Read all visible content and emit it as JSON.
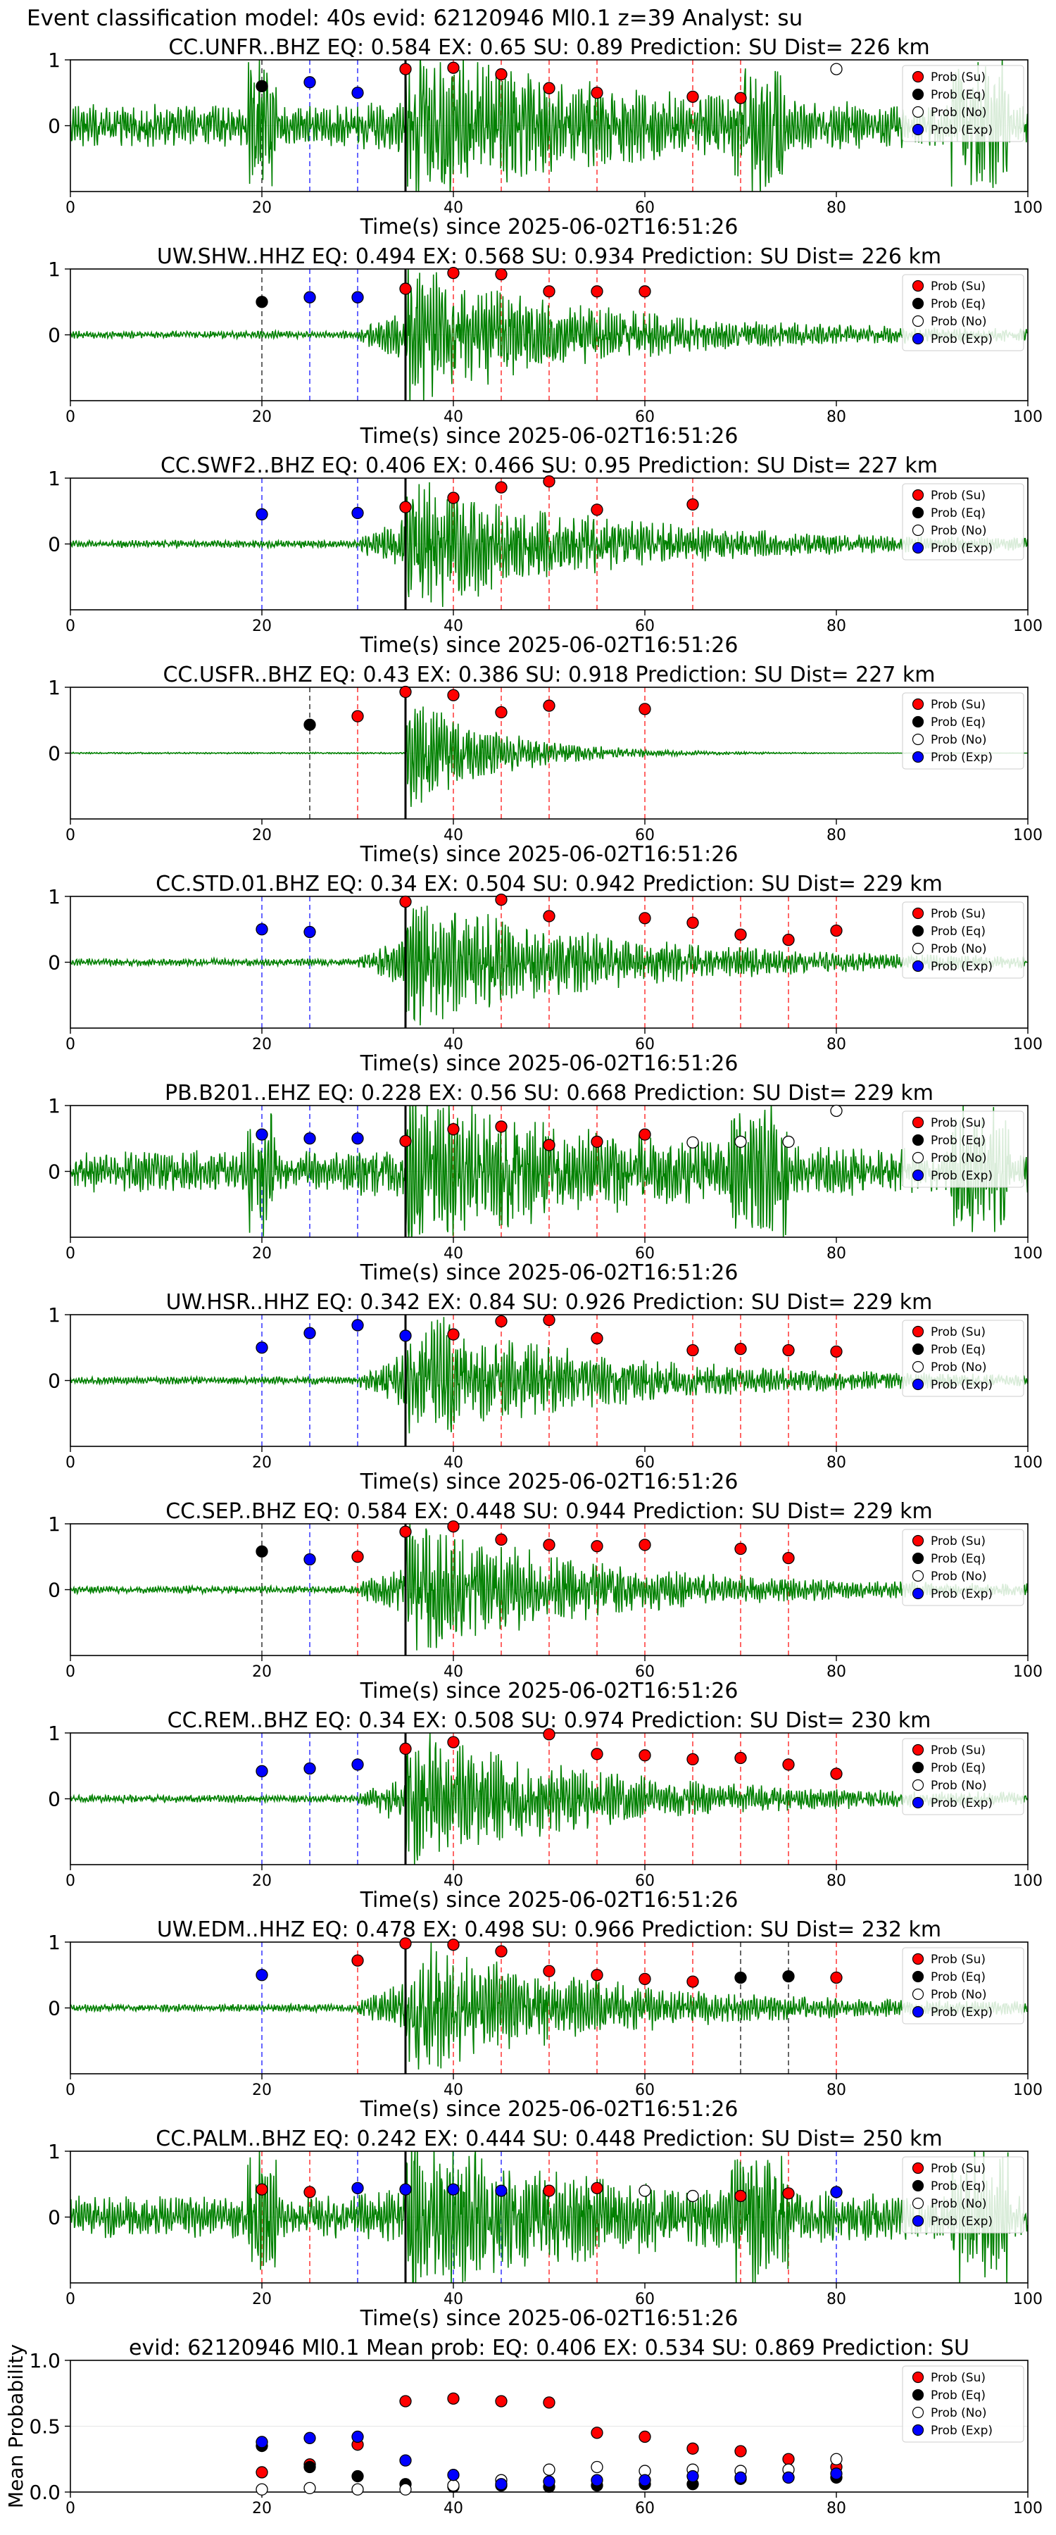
{
  "page_title": "Event classification model: 40s evid: 62120946 Ml0.1 z=39 Analyst: su",
  "legend_labels": [
    "Prob (Su)",
    "Prob (Eq)",
    "Prob (No)",
    "Prob (Exp)"
  ],
  "colors": {
    "su": "#ff0000",
    "eq": "#000000",
    "no": "#ffffff",
    "exp": "#0000ff",
    "trace": "#008000",
    "pick": "#000000"
  },
  "chart_data": [
    {
      "type": "line",
      "title": "CC.UNFR..BHZ   EQ: 0.584  EX: 0.65  SU: 0.89   Prediction: SU    Dist= 226 km",
      "xlabel": "Time(s) since 2025-06-02T16:51:26",
      "xlim": [
        0,
        100
      ],
      "ylim": [
        -1,
        1
      ],
      "xticks": [
        0,
        20,
        40,
        60,
        80,
        100
      ],
      "yticks": [
        0,
        1
      ],
      "pick_time": 35,
      "trace_style": "noisy",
      "series": [
        {
          "name": "Prob (Su)",
          "x": [
            35,
            40,
            45,
            50,
            55,
            65,
            70
          ],
          "y": [
            0.86,
            0.88,
            0.78,
            0.57,
            0.5,
            0.44,
            0.42
          ]
        },
        {
          "name": "Prob (Eq)",
          "x": [
            20
          ],
          "y": [
            0.6
          ]
        },
        {
          "name": "Prob (No)",
          "x": [
            80
          ],
          "y": [
            0.86
          ]
        },
        {
          "name": "Prob (Exp)",
          "x": [
            25,
            30
          ],
          "y": [
            0.66,
            0.5
          ]
        }
      ]
    },
    {
      "type": "line",
      "title": "UW.SHW..HHZ   EQ: 0.494  EX: 0.568  SU: 0.934   Prediction: SU    Dist= 226 km",
      "xlabel": "Time(s) since 2025-06-02T16:51:26",
      "xlim": [
        0,
        100
      ],
      "ylim": [
        -1,
        1
      ],
      "xticks": [
        0,
        20,
        40,
        60,
        80,
        100
      ],
      "yticks": [
        0,
        1
      ],
      "pick_time": 35,
      "trace_style": "quiet",
      "series": [
        {
          "name": "Prob (Su)",
          "x": [
            35,
            40,
            45,
            50,
            55,
            60
          ],
          "y": [
            0.7,
            0.94,
            0.92,
            0.66,
            0.66,
            0.66
          ]
        },
        {
          "name": "Prob (Eq)",
          "x": [
            20
          ],
          "y": [
            0.5
          ]
        },
        {
          "name": "Prob (No)",
          "x": [],
          "y": []
        },
        {
          "name": "Prob (Exp)",
          "x": [
            25,
            30
          ],
          "y": [
            0.57,
            0.57
          ]
        }
      ]
    },
    {
      "type": "line",
      "title": "CC.SWF2..BHZ   EQ: 0.406  EX: 0.466  SU: 0.95   Prediction: SU    Dist= 227 km",
      "xlabel": "Time(s) since 2025-06-02T16:51:26",
      "xlim": [
        0,
        100
      ],
      "ylim": [
        -1,
        1
      ],
      "xticks": [
        0,
        20,
        40,
        60,
        80,
        100
      ],
      "yticks": [
        0,
        1
      ],
      "pick_time": 35,
      "trace_style": "quiet",
      "series": [
        {
          "name": "Prob (Su)",
          "x": [
            35,
            40,
            45,
            50,
            55,
            65
          ],
          "y": [
            0.56,
            0.7,
            0.86,
            0.95,
            0.52,
            0.6
          ]
        },
        {
          "name": "Prob (Eq)",
          "x": [],
          "y": []
        },
        {
          "name": "Prob (No)",
          "x": [],
          "y": []
        },
        {
          "name": "Prob (Exp)",
          "x": [
            20,
            30
          ],
          "y": [
            0.45,
            0.47
          ]
        }
      ]
    },
    {
      "type": "line",
      "title": "CC.USFR..BHZ   EQ: 0.43  EX: 0.386  SU: 0.918   Prediction: SU    Dist= 227 km",
      "xlabel": "Time(s) since 2025-06-02T16:51:26",
      "xlim": [
        0,
        100
      ],
      "ylim": [
        -1,
        1
      ],
      "xticks": [
        0,
        20,
        40,
        60,
        80,
        100
      ],
      "yticks": [
        0,
        1
      ],
      "pick_time": 35,
      "trace_style": "flat",
      "series": [
        {
          "name": "Prob (Su)",
          "x": [
            30,
            35,
            40,
            45,
            50,
            60
          ],
          "y": [
            0.56,
            0.93,
            0.88,
            0.62,
            0.72,
            0.67
          ]
        },
        {
          "name": "Prob (Eq)",
          "x": [
            25
          ],
          "y": [
            0.43
          ]
        },
        {
          "name": "Prob (No)",
          "x": [],
          "y": []
        },
        {
          "name": "Prob (Exp)",
          "x": [],
          "y": []
        }
      ]
    },
    {
      "type": "line",
      "title": "CC.STD.01.BHZ   EQ: 0.34  EX: 0.504  SU: 0.942   Prediction: SU    Dist= 229 km",
      "xlabel": "Time(s) since 2025-06-02T16:51:26",
      "xlim": [
        0,
        100
      ],
      "ylim": [
        -1,
        1
      ],
      "xticks": [
        0,
        20,
        40,
        60,
        80,
        100
      ],
      "yticks": [
        0,
        1
      ],
      "pick_time": 35,
      "trace_style": "quiet",
      "series": [
        {
          "name": "Prob (Su)",
          "x": [
            35,
            45,
            50,
            60,
            65,
            70,
            75,
            80
          ],
          "y": [
            0.92,
            0.95,
            0.7,
            0.67,
            0.6,
            0.42,
            0.34,
            0.48
          ]
        },
        {
          "name": "Prob (Eq)",
          "x": [],
          "y": []
        },
        {
          "name": "Prob (No)",
          "x": [],
          "y": []
        },
        {
          "name": "Prob (Exp)",
          "x": [
            20,
            25
          ],
          "y": [
            0.5,
            0.46
          ]
        }
      ]
    },
    {
      "type": "line",
      "title": "PB.B201..EHZ   EQ: 0.228  EX: 0.56  SU: 0.668   Prediction: SU    Dist= 229 km",
      "xlabel": "Time(s) since 2025-06-02T16:51:26",
      "xlim": [
        0,
        100
      ],
      "ylim": [
        -1,
        1
      ],
      "xticks": [
        0,
        20,
        40,
        60,
        80,
        100
      ],
      "yticks": [
        0,
        1
      ],
      "pick_time": 35,
      "trace_style": "noisy",
      "series": [
        {
          "name": "Prob (Su)",
          "x": [
            35,
            40,
            45,
            50,
            55,
            60
          ],
          "y": [
            0.46,
            0.64,
            0.68,
            0.4,
            0.45,
            0.56
          ]
        },
        {
          "name": "Prob (Eq)",
          "x": [],
          "y": []
        },
        {
          "name": "Prob (No)",
          "x": [
            65,
            70,
            75,
            80
          ],
          "y": [
            0.44,
            0.45,
            0.45,
            0.92
          ]
        },
        {
          "name": "Prob (Exp)",
          "x": [
            20,
            25,
            30
          ],
          "y": [
            0.56,
            0.5,
            0.5
          ]
        }
      ]
    },
    {
      "type": "line",
      "title": "UW.HSR..HHZ   EQ: 0.342  EX: 0.84  SU: 0.926   Prediction: SU    Dist= 229 km",
      "xlabel": "Time(s) since 2025-06-02T16:51:26",
      "xlim": [
        0,
        100
      ],
      "ylim": [
        -1,
        1
      ],
      "xticks": [
        0,
        20,
        40,
        60,
        80,
        100
      ],
      "yticks": [
        0,
        1
      ],
      "pick_time": 35,
      "trace_style": "quiet",
      "series": [
        {
          "name": "Prob (Su)",
          "x": [
            40,
            45,
            50,
            55,
            65,
            70,
            75,
            80
          ],
          "y": [
            0.7,
            0.9,
            0.92,
            0.64,
            0.46,
            0.48,
            0.46,
            0.44
          ]
        },
        {
          "name": "Prob (Eq)",
          "x": [],
          "y": []
        },
        {
          "name": "Prob (No)",
          "x": [],
          "y": []
        },
        {
          "name": "Prob (Exp)",
          "x": [
            20,
            25,
            30,
            35
          ],
          "y": [
            0.5,
            0.72,
            0.84,
            0.68
          ]
        }
      ]
    },
    {
      "type": "line",
      "title": "CC.SEP..BHZ   EQ: 0.584  EX: 0.448  SU: 0.944   Prediction: SU    Dist= 229 km",
      "xlabel": "Time(s) since 2025-06-02T16:51:26",
      "xlim": [
        0,
        100
      ],
      "ylim": [
        -1,
        1
      ],
      "xticks": [
        0,
        20,
        40,
        60,
        80,
        100
      ],
      "yticks": [
        0,
        1
      ],
      "pick_time": 35,
      "trace_style": "quiet",
      "series": [
        {
          "name": "Prob (Su)",
          "x": [
            30,
            35,
            40,
            45,
            50,
            55,
            60,
            70,
            75
          ],
          "y": [
            0.5,
            0.88,
            0.96,
            0.76,
            0.68,
            0.66,
            0.68,
            0.62,
            0.48
          ]
        },
        {
          "name": "Prob (Eq)",
          "x": [
            20
          ],
          "y": [
            0.58
          ]
        },
        {
          "name": "Prob (No)",
          "x": [],
          "y": []
        },
        {
          "name": "Prob (Exp)",
          "x": [
            25
          ],
          "y": [
            0.46
          ]
        }
      ]
    },
    {
      "type": "line",
      "title": "CC.REM..BHZ   EQ: 0.34  EX: 0.508  SU: 0.974   Prediction: SU    Dist= 230 km",
      "xlabel": "Time(s) since 2025-06-02T16:51:26",
      "xlim": [
        0,
        100
      ],
      "ylim": [
        -1,
        1
      ],
      "xticks": [
        0,
        20,
        40,
        60,
        80,
        100
      ],
      "yticks": [
        0,
        1
      ],
      "pick_time": 35,
      "trace_style": "quiet",
      "series": [
        {
          "name": "Prob (Su)",
          "x": [
            35,
            40,
            50,
            55,
            60,
            65,
            70,
            75,
            80
          ],
          "y": [
            0.76,
            0.86,
            0.98,
            0.68,
            0.66,
            0.6,
            0.62,
            0.52,
            0.38
          ]
        },
        {
          "name": "Prob (Eq)",
          "x": [],
          "y": []
        },
        {
          "name": "Prob (No)",
          "x": [],
          "y": []
        },
        {
          "name": "Prob (Exp)",
          "x": [
            20,
            25,
            30
          ],
          "y": [
            0.42,
            0.46,
            0.52
          ]
        }
      ]
    },
    {
      "type": "line",
      "title": "UW.EDM..HHZ   EQ: 0.478  EX: 0.498  SU: 0.966   Prediction: SU    Dist= 232 km",
      "xlabel": "Time(s) since 2025-06-02T16:51:26",
      "xlim": [
        0,
        100
      ],
      "ylim": [
        -1,
        1
      ],
      "xticks": [
        0,
        20,
        40,
        60,
        80,
        100
      ],
      "yticks": [
        0,
        1
      ],
      "pick_time": 35,
      "trace_style": "quiet",
      "series": [
        {
          "name": "Prob (Su)",
          "x": [
            30,
            35,
            40,
            45,
            50,
            55,
            60,
            65,
            80
          ],
          "y": [
            0.72,
            0.98,
            0.96,
            0.86,
            0.56,
            0.5,
            0.44,
            0.4,
            0.46
          ]
        },
        {
          "name": "Prob (Eq)",
          "x": [
            70,
            75
          ],
          "y": [
            0.46,
            0.48
          ]
        },
        {
          "name": "Prob (No)",
          "x": [],
          "y": []
        },
        {
          "name": "Prob (Exp)",
          "x": [
            20
          ],
          "y": [
            0.5
          ]
        }
      ]
    },
    {
      "type": "line",
      "title": "CC.PALM..BHZ   EQ: 0.242  EX: 0.444  SU: 0.448   Prediction: SU    Dist= 250 km",
      "xlabel": "Time(s) since 2025-06-02T16:51:26",
      "xlim": [
        0,
        100
      ],
      "ylim": [
        -1,
        1
      ],
      "xticks": [
        0,
        20,
        40,
        60,
        80,
        100
      ],
      "yticks": [
        0,
        1
      ],
      "pick_time": 35,
      "trace_style": "noisy",
      "series": [
        {
          "name": "Prob (Su)",
          "x": [
            20,
            25,
            50,
            55,
            70,
            75
          ],
          "y": [
            0.42,
            0.38,
            0.4,
            0.44,
            0.32,
            0.36
          ]
        },
        {
          "name": "Prob (Eq)",
          "x": [],
          "y": []
        },
        {
          "name": "Prob (No)",
          "x": [
            60,
            65
          ],
          "y": [
            0.4,
            0.32
          ]
        },
        {
          "name": "Prob (Exp)",
          "x": [
            30,
            35,
            40,
            45,
            80
          ],
          "y": [
            0.44,
            0.42,
            0.42,
            0.4,
            0.38
          ]
        }
      ]
    },
    {
      "type": "scatter",
      "title": "evid: 62120946  Ml0.1   Mean prob:   EQ: 0.406  EX: 0.534  SU: 0.869   Prediction: SU",
      "xlabel": "",
      "ylabel": "Mean Probability",
      "xlim": [
        0,
        100
      ],
      "ylim": [
        0,
        1
      ],
      "xticks": [
        0,
        20,
        40,
        60,
        80,
        100
      ],
      "yticks": [
        0.0,
        0.5,
        1.0
      ],
      "ytick_labels": [
        "0.0",
        "0.5",
        "1.0"
      ],
      "series": [
        {
          "name": "Prob (Su)",
          "x": [
            20,
            25,
            30,
            35,
            40,
            45,
            50,
            55,
            60,
            65,
            70,
            75,
            80
          ],
          "y": [
            0.15,
            0.21,
            0.36,
            0.69,
            0.71,
            0.69,
            0.68,
            0.45,
            0.42,
            0.33,
            0.31,
            0.25,
            0.19
          ]
        },
        {
          "name": "Prob (Eq)",
          "x": [
            20,
            25,
            30,
            35,
            40,
            45,
            50,
            55,
            60,
            65,
            70,
            75,
            80
          ],
          "y": [
            0.35,
            0.19,
            0.12,
            0.06,
            0.04,
            0.05,
            0.04,
            0.05,
            0.06,
            0.06,
            0.1,
            0.11,
            0.11
          ]
        },
        {
          "name": "Prob (No)",
          "x": [
            20,
            25,
            30,
            35,
            40,
            45,
            50,
            55,
            60,
            65,
            70,
            75,
            80
          ],
          "y": [
            0.02,
            0.03,
            0.02,
            0.02,
            0.05,
            0.09,
            0.17,
            0.19,
            0.16,
            0.17,
            0.16,
            0.17,
            0.25
          ]
        },
        {
          "name": "Prob (Exp)",
          "x": [
            20,
            25,
            30,
            35,
            40,
            45,
            50,
            55,
            60,
            65,
            70,
            75,
            80
          ],
          "y": [
            0.38,
            0.41,
            0.42,
            0.24,
            0.13,
            0.06,
            0.08,
            0.09,
            0.09,
            0.12,
            0.11,
            0.11,
            0.14
          ]
        }
      ]
    }
  ]
}
